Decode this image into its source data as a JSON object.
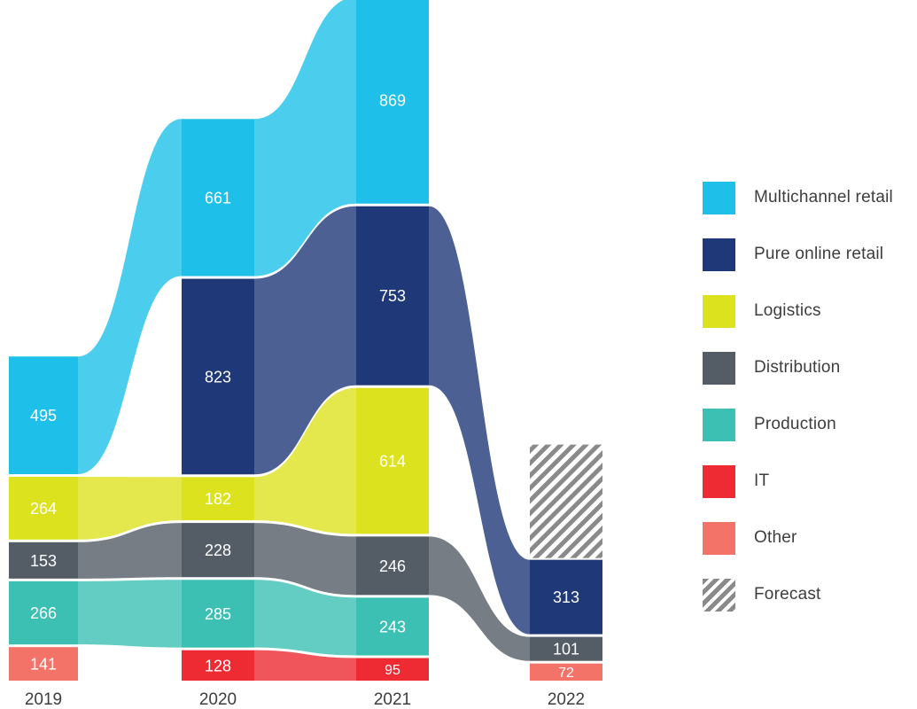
{
  "chart_data": {
    "type": "stacked-flow",
    "categories": [
      "2019",
      "2020",
      "2021",
      "2022"
    ],
    "series": [
      {
        "name": "Multichannel retail",
        "color": "#1ec0ea",
        "values": [
          495,
          661,
          869,
          null
        ]
      },
      {
        "name": "Pure online retail",
        "color": "#1f3878",
        "values": [
          null,
          823,
          753,
          313
        ]
      },
      {
        "name": "Logistics",
        "color": "#dde21f",
        "values": [
          264,
          182,
          614,
          null
        ]
      },
      {
        "name": "Distribution",
        "color": "#545c66",
        "values": [
          153,
          228,
          246,
          101
        ]
      },
      {
        "name": "Production",
        "color": "#3cc0b4",
        "values": [
          266,
          285,
          243,
          null
        ]
      },
      {
        "name": "IT",
        "color": "#ee2b33",
        "values": [
          null,
          128,
          95,
          null
        ]
      },
      {
        "name": "Other",
        "color": "#f37368",
        "values": [
          141,
          null,
          null,
          72
        ]
      }
    ],
    "forecast_label": "Forecast"
  }
}
